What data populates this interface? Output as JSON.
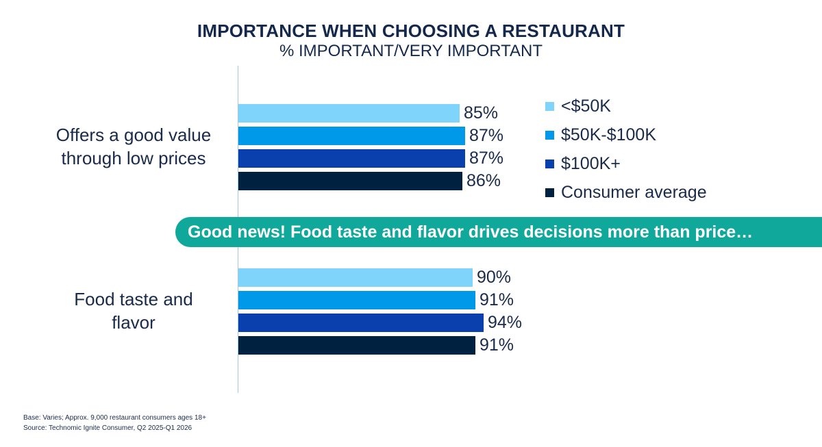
{
  "chart_data": {
    "type": "bar",
    "orientation": "horizontal",
    "title": "IMPORTANCE WHEN CHOOSING A RESTAURANT",
    "subtitle": "% IMPORTANT/VERY IMPORTANT",
    "categories": [
      "Offers a good value\nthrough low prices",
      "Food taste and\nflavor"
    ],
    "series": [
      {
        "name": "<$50K",
        "values": [
          85,
          90
        ],
        "labels": [
          "85%",
          "90%"
        ],
        "color": "#7fd4fb"
      },
      {
        "name": "$50K-$100K",
        "values": [
          87,
          91
        ],
        "labels": [
          "87%",
          "91%"
        ],
        "color": "#0099ea"
      },
      {
        "name": "$100K+",
        "values": [
          87,
          94
        ],
        "labels": [
          "87%",
          "94%"
        ],
        "color": "#0a3fae"
      },
      {
        "name": "Consumer average",
        "values": [
          86,
          91
        ],
        "labels": [
          "86%",
          "91%"
        ],
        "color": "#00213f"
      }
    ],
    "legend_position": "right",
    "grid": false
  },
  "callout": "Good news! Food taste and flavor drives decisions more than price…",
  "callout_color": "#0fa89a",
  "footnotes": [
    "Base: Varies; Approx. 9,000 restaurant consumers ages 18+",
    "Source: Technomic Ignite Consumer, Q2 2025-Q1 2026"
  ]
}
